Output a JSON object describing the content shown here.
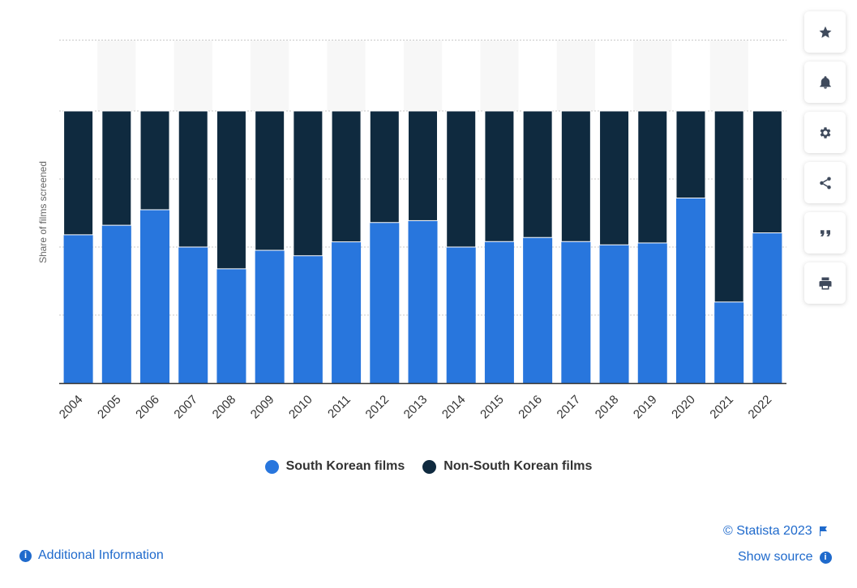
{
  "chart_data": {
    "type": "bar",
    "stacked": true,
    "categories": [
      "2004",
      "2005",
      "2006",
      "2007",
      "2008",
      "2009",
      "2010",
      "2011",
      "2012",
      "2013",
      "2014",
      "2015",
      "2016",
      "2017",
      "2018",
      "2019",
      "2020",
      "2021",
      "2022"
    ],
    "series": [
      {
        "name": "South Korean films",
        "color": "#2876dd",
        "values": [
          54.5,
          58.0,
          63.7,
          50.0,
          42.0,
          48.8,
          46.8,
          51.9,
          59.0,
          59.7,
          50.0,
          52.0,
          53.5,
          52.0,
          50.8,
          51.5,
          68.0,
          29.8,
          55.2
        ]
      },
      {
        "name": "Non-South Korean films",
        "color": "#0f2a3f",
        "values": [
          45.5,
          42.0,
          36.3,
          50.0,
          58.0,
          51.2,
          53.2,
          48.1,
          41.0,
          40.3,
          50.0,
          48.0,
          46.5,
          48.0,
          49.2,
          48.5,
          32.0,
          70.2,
          44.8
        ]
      }
    ],
    "xlabel": "",
    "ylabel": "Share of films screened",
    "ylim": [
      0,
      100
    ],
    "grid": true,
    "legend_position": "bottom-center"
  },
  "legend": {
    "south_korean": "South Korean films",
    "non_south_korean": "Non-South Korean films"
  },
  "toolbar": {
    "icons": [
      "star-icon",
      "bell-icon",
      "gear-icon",
      "share-icon",
      "quote-icon",
      "print-icon"
    ]
  },
  "footer": {
    "additional_info": "Additional Information",
    "copyright": "© Statista 2023",
    "show_source": "Show source"
  }
}
